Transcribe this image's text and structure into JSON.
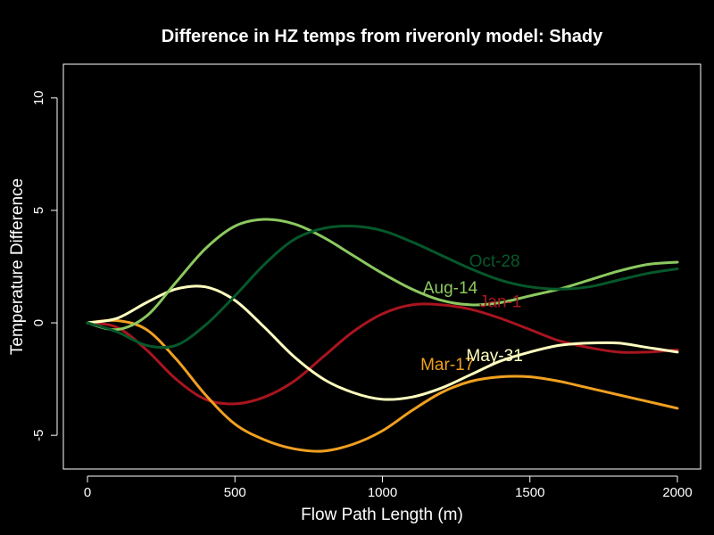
{
  "chart_data": {
    "type": "line",
    "title": "Difference in HZ temps from riveronly model: Shady",
    "xlabel": "Flow Path Length (m)",
    "ylabel": "Temperature Difference",
    "xlim": [
      0,
      2000
    ],
    "ylim": [
      -6.5,
      11.5
    ],
    "x_ticks": [
      0,
      500,
      1000,
      1500,
      2000
    ],
    "y_ticks": [
      -5,
      0,
      5,
      10
    ],
    "x_tick_labels": [
      "0",
      "500",
      "1000",
      "1500",
      "2000"
    ],
    "y_tick_labels": [
      "-5",
      "0",
      "5",
      "10"
    ],
    "grid": false,
    "legend": "inline labels",
    "background": "#000000",
    "foreground": "#ffffff",
    "x": [
      0,
      100,
      200,
      300,
      400,
      500,
      600,
      700,
      800,
      900,
      1000,
      1100,
      1200,
      1300,
      1400,
      1500,
      1600,
      1700,
      1800,
      1900,
      2000
    ],
    "series": [
      {
        "name": "Jan-1",
        "color": "#a8151f",
        "label_at": [
          1400,
          0.9
        ],
        "values": [
          0,
          -0.2,
          -1.2,
          -2.5,
          -3.4,
          -3.6,
          -3.3,
          -2.6,
          -1.5,
          -0.4,
          0.4,
          0.8,
          0.8,
          0.6,
          0.2,
          -0.3,
          -0.8,
          -1.1,
          -1.3,
          -1.3,
          -1.2
        ]
      },
      {
        "name": "Mar-17",
        "color": "#f0a020",
        "label_at": [
          1220,
          -1.9
        ],
        "values": [
          0,
          0.1,
          -0.3,
          -1.6,
          -3.2,
          -4.5,
          -5.2,
          -5.6,
          -5.7,
          -5.4,
          -4.8,
          -3.9,
          -3.1,
          -2.6,
          -2.4,
          -2.4,
          -2.6,
          -2.9,
          -3.2,
          -3.5,
          -3.8
        ]
      },
      {
        "name": "May-31",
        "color": "#ffffc0",
        "label_at": [
          1380,
          -1.5
        ],
        "values": [
          0,
          0.2,
          0.9,
          1.5,
          1.6,
          1.0,
          -0.2,
          -1.5,
          -2.5,
          -3.1,
          -3.4,
          -3.3,
          -2.9,
          -2.3,
          -1.7,
          -1.3,
          -1.0,
          -0.9,
          -0.9,
          -1.1,
          -1.3
        ]
      },
      {
        "name": "Aug-14",
        "color": "#8cc960",
        "label_at": [
          1230,
          1.5
        ],
        "values": [
          0,
          -0.3,
          0.3,
          1.8,
          3.3,
          4.3,
          4.6,
          4.4,
          3.8,
          3.0,
          2.2,
          1.5,
          1.0,
          0.8,
          0.9,
          1.2,
          1.5,
          1.9,
          2.3,
          2.6,
          2.7
        ]
      },
      {
        "name": "Oct-28",
        "color": "#06582a",
        "label_at": [
          1380,
          2.7
        ],
        "values": [
          0,
          -0.4,
          -1.0,
          -1.0,
          -0.1,
          1.2,
          2.6,
          3.7,
          4.2,
          4.3,
          4.1,
          3.6,
          3.0,
          2.4,
          1.9,
          1.6,
          1.5,
          1.6,
          1.9,
          2.2,
          2.4
        ]
      }
    ]
  }
}
